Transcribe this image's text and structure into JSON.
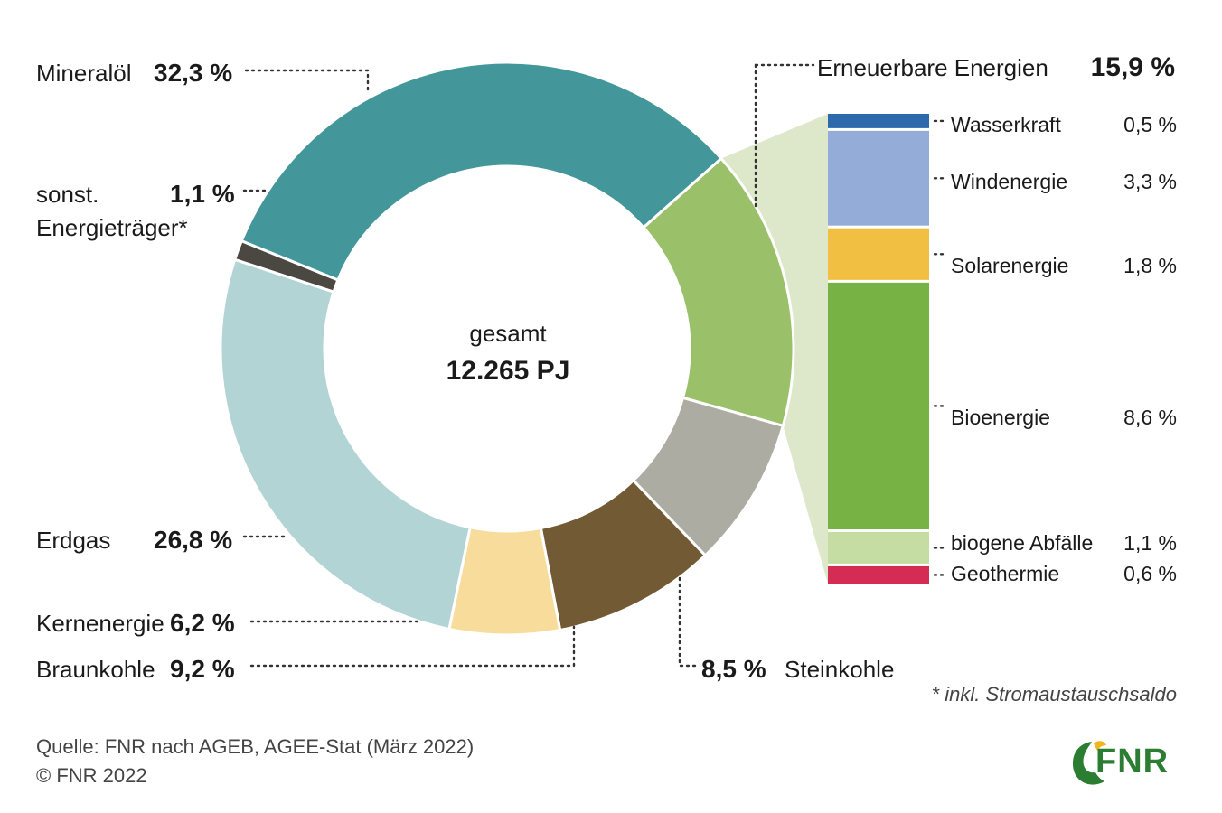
{
  "chart_data": {
    "type": "pie",
    "center_label": "gesamt",
    "center_value": "12.265 PJ",
    "slices": [
      {
        "name": "Mineralöl",
        "value": 32.3,
        "label": "32,3 %",
        "color": "#43979a"
      },
      {
        "name": "Erneuerbare Energien",
        "value": 15.9,
        "label": "15,9 %",
        "color": "#9bc06a"
      },
      {
        "name": "Steinkohle",
        "value": 8.5,
        "label": "8,5 %",
        "color": "#adaca3"
      },
      {
        "name": "Braunkohle",
        "value": 9.2,
        "label": "9,2 %",
        "color": "#725a35"
      },
      {
        "name": "Kernenergie",
        "value": 6.2,
        "label": "6,2 %",
        "color": "#f8dc9c"
      },
      {
        "name": "Erdgas",
        "value": 26.8,
        "label": "26,8 %",
        "color": "#b2d4d5"
      },
      {
        "name": "sonst. Energieträger*",
        "name_line1": "sonst.",
        "name_line2": "Energieträger*",
        "value": 1.1,
        "label": "1,1 %",
        "color": "#4a4840"
      }
    ],
    "breakdown": {
      "parent": "Erneuerbare Energien",
      "items": [
        {
          "name": "Wasserkraft",
          "value": 0.5,
          "label": "0,5 %",
          "color": "#2e68ad"
        },
        {
          "name": "Windenergie",
          "value": 3.3,
          "label": "3,3 %",
          "color": "#94acd8"
        },
        {
          "name": "Solarenergie",
          "value": 1.8,
          "label": "1,8 %",
          "color": "#f1bf42"
        },
        {
          "name": "Bioenergie",
          "value": 8.6,
          "label": "8,6 %",
          "color": "#76b244"
        },
        {
          "name": "biogene Abfälle",
          "value": 1.1,
          "label": "1,1 %",
          "color": "#c5dca2"
        },
        {
          "name": "Geothermie",
          "value": 0.6,
          "label": "0,6 %",
          "color": "#d42c53"
        }
      ]
    }
  },
  "footnote": "* inkl. Stromaustauschsaldo",
  "source_line1": "Quelle: FNR nach AGEB, AGEE-Stat (März 2022)",
  "source_line2": "© FNR 2022",
  "logo_text": "FNR",
  "colors": {
    "wedge_bg": "#dde8cb",
    "logo_green": "#2b7d31",
    "logo_yellow": "#f2b51e"
  }
}
